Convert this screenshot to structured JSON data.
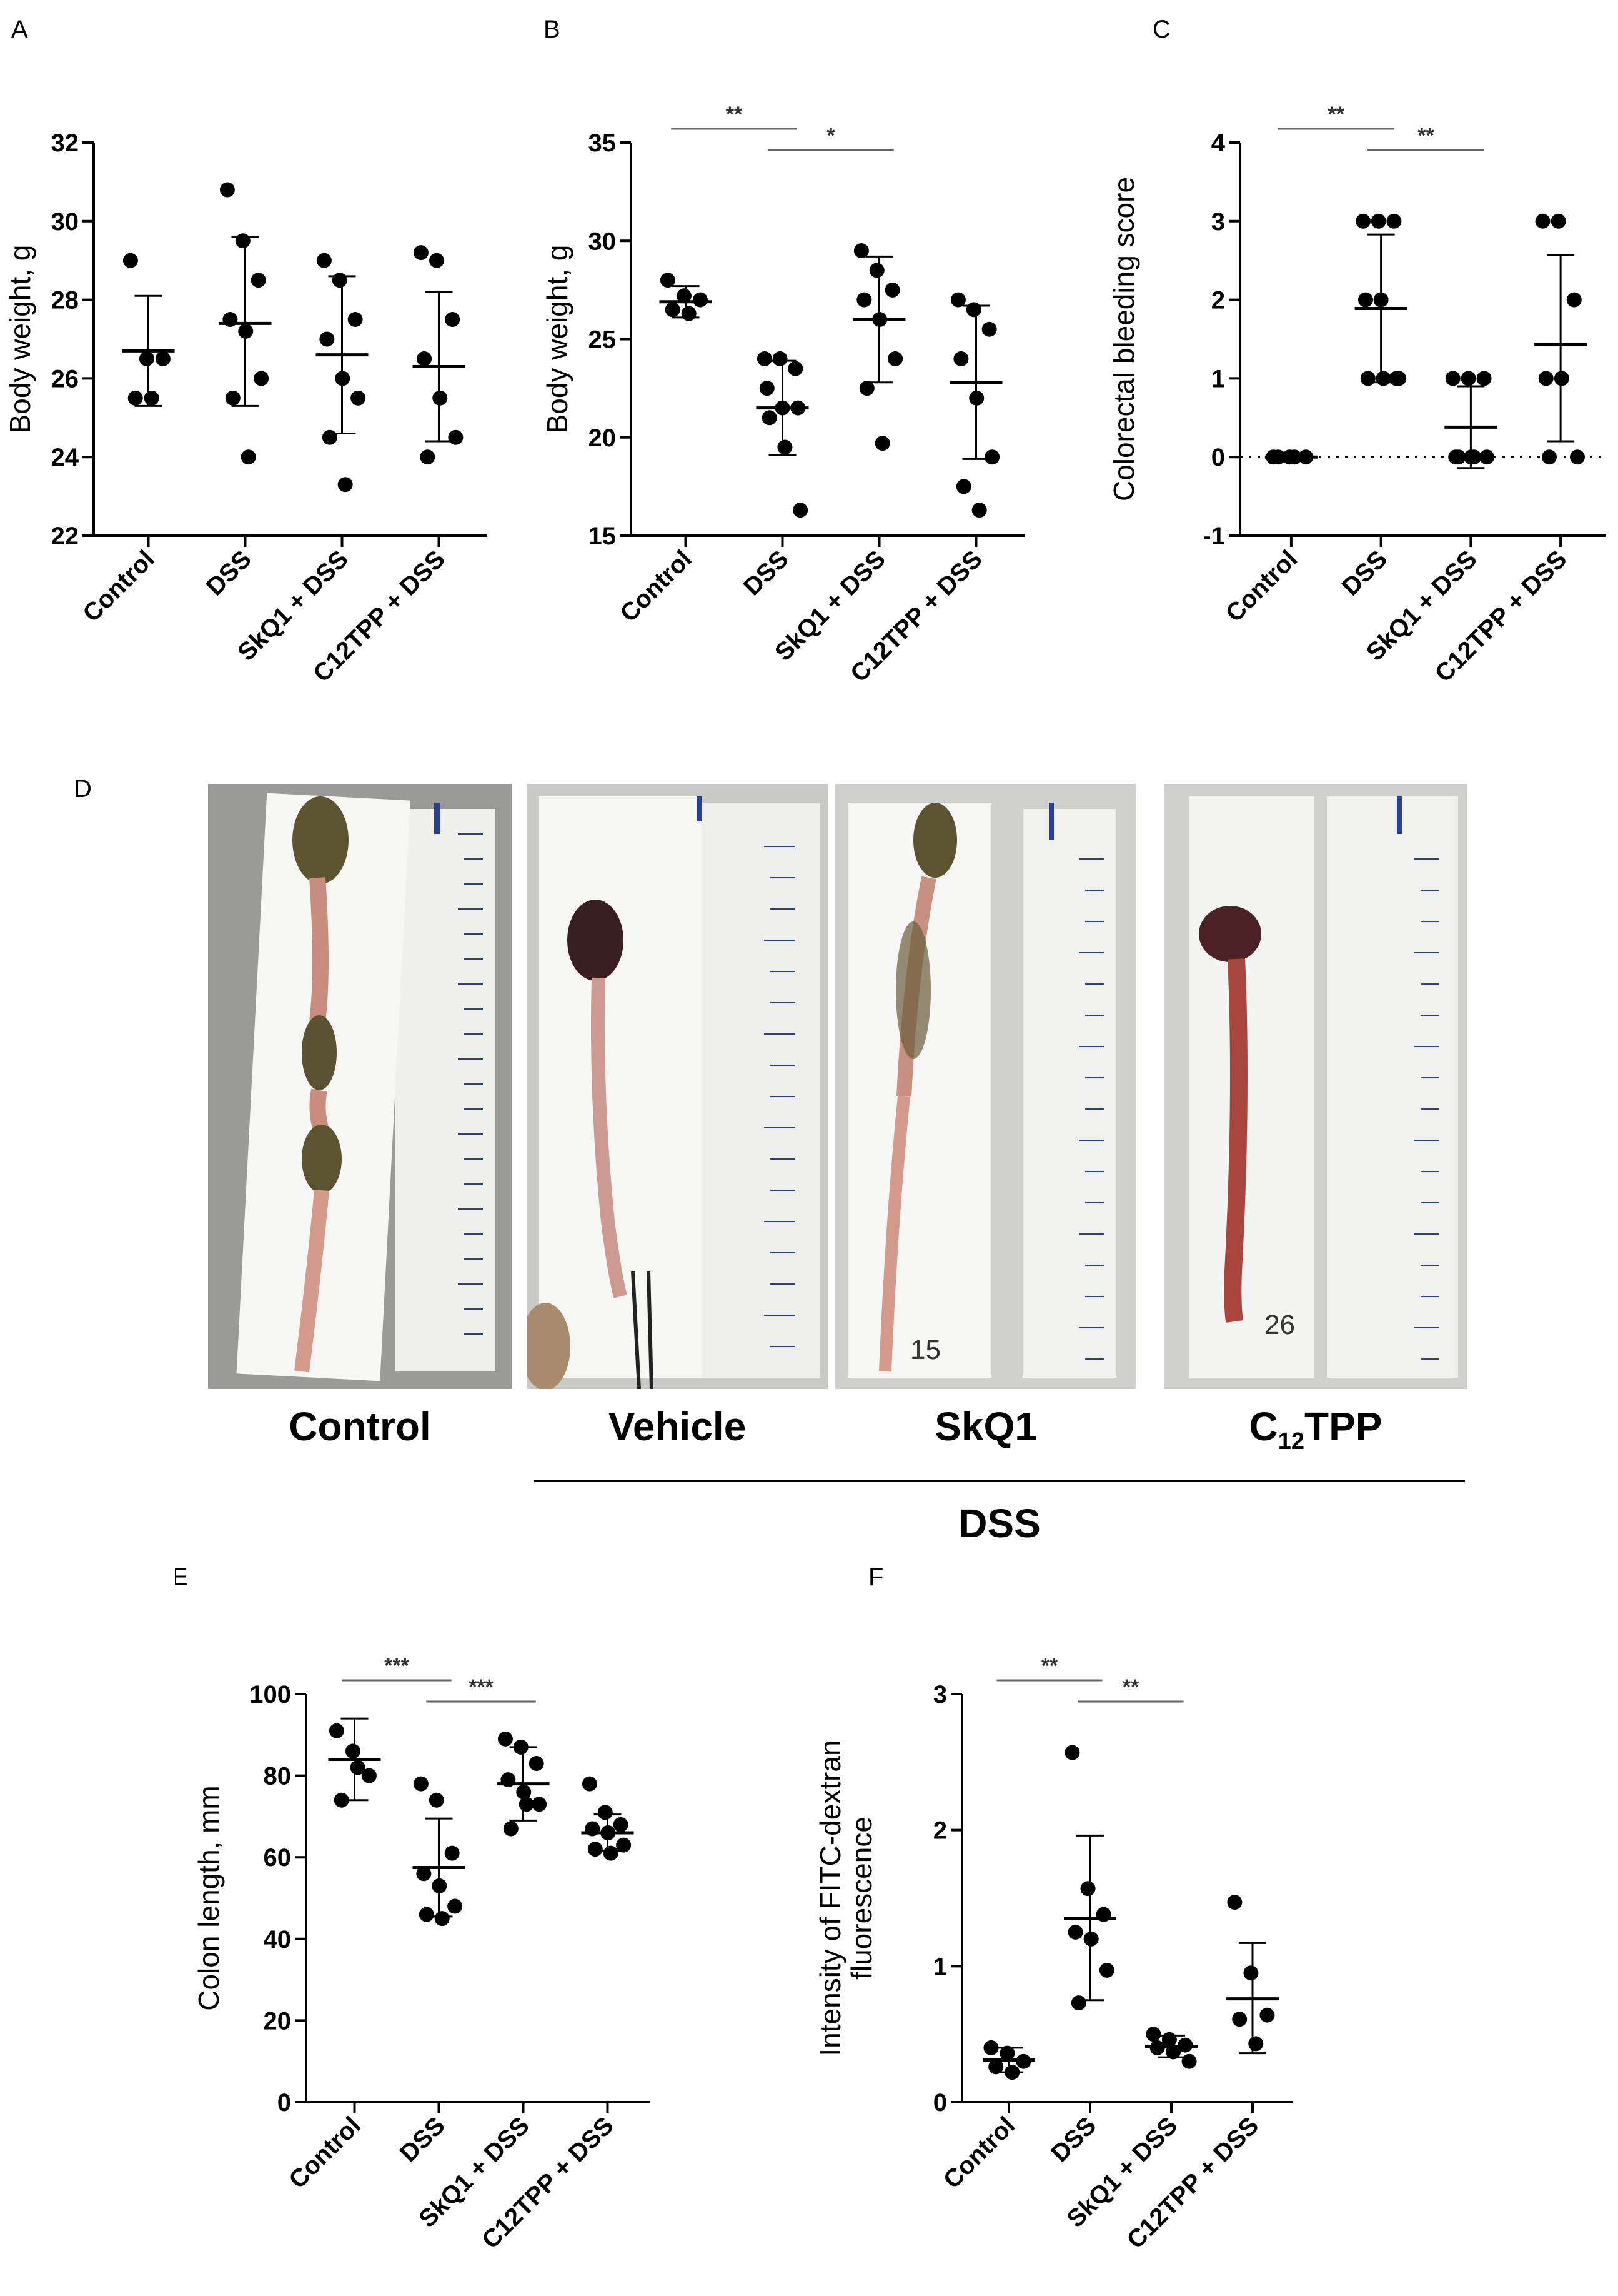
{
  "panel_labels": {
    "A": "A",
    "B": "B",
    "C": "C",
    "D": "D",
    "E": "E",
    "F": "F"
  },
  "photos": {
    "captions": [
      "Control",
      "Vehicle",
      "SkQ1",
      "C12TPP"
    ],
    "c12_prefix": "C",
    "c12_sub": "12",
    "c12_suffix": "TPP",
    "group_label": "DSS",
    "handwritten": [
      "15",
      "26"
    ]
  },
  "chart_data": [
    {
      "id": "A",
      "type": "scatter",
      "ylabel": "Body weight, g",
      "ylim": [
        22,
        32
      ],
      "yticks": [
        22,
        24,
        26,
        28,
        30,
        32
      ],
      "categories": [
        "Control",
        "DSS",
        "SkQ1 + DSS",
        "C12TPP + DSS"
      ],
      "points": [
        [
          29,
          26.5,
          26.5,
          25.5,
          25.5
        ],
        [
          30.8,
          29.5,
          28.5,
          27.5,
          27.2,
          26,
          25.5,
          24
        ],
        [
          29,
          28.5,
          27.5,
          27,
          26,
          25.5,
          24.5,
          23.3
        ],
        [
          29.2,
          29,
          27.5,
          26.5,
          25.5,
          24.5,
          24
        ]
      ],
      "means": [
        26.7,
        27.4,
        26.6,
        26.3
      ],
      "sd_low": [
        25.3,
        25.3,
        24.6,
        24.4
      ],
      "sd_high": [
        28.1,
        29.6,
        28.6,
        28.2
      ],
      "significance": [],
      "zero_line": false
    },
    {
      "id": "B",
      "type": "scatter",
      "ylabel": "Body weight, g",
      "ylim": [
        15,
        35
      ],
      "yticks": [
        15,
        20,
        25,
        30,
        35
      ],
      "categories": [
        "Control",
        "DSS",
        "SkQ1 + DSS",
        "C12TPP + DSS"
      ],
      "points": [
        [
          28,
          27.2,
          27,
          26.5,
          26.3
        ],
        [
          24,
          24,
          23.5,
          22.5,
          21.5,
          21.5,
          21,
          19.5,
          16.3
        ],
        [
          29.5,
          28.5,
          27.5,
          27,
          26,
          24,
          22.5,
          19.7
        ],
        [
          27,
          26.5,
          25.5,
          24,
          22,
          19,
          17.5,
          16.3
        ]
      ],
      "means": [
        26.9,
        21.5,
        26,
        22.8
      ],
      "sd_low": [
        26.1,
        19.1,
        22.8,
        18.9
      ],
      "sd_high": [
        27.7,
        23.9,
        29.2,
        26.7
      ],
      "significance": [
        {
          "from": 0,
          "to": 1,
          "label": "**"
        },
        {
          "from": 1,
          "to": 2,
          "label": "*"
        }
      ],
      "zero_line": false
    },
    {
      "id": "C",
      "type": "scatter",
      "ylabel": "Colorectal bleeding score",
      "ylim": [
        -1,
        4
      ],
      "yticks": [
        -1,
        0,
        1,
        2,
        3,
        4
      ],
      "categories": [
        "Control",
        "DSS",
        "SkQ1 + DSS",
        "C12TPP + DSS"
      ],
      "points": [
        [
          0,
          0,
          0,
          0,
          0
        ],
        [
          3,
          3,
          3,
          2,
          2,
          1,
          1,
          1,
          1
        ],
        [
          1,
          1,
          1,
          0,
          0,
          0,
          0,
          0
        ],
        [
          3,
          3,
          2,
          1,
          1,
          0,
          0
        ]
      ],
      "means": [
        0,
        1.89,
        0.38,
        1.43
      ],
      "sd_low": [
        0,
        0.95,
        -0.14,
        0.2
      ],
      "sd_high": [
        0,
        2.83,
        0.9,
        2.57
      ],
      "significance": [
        {
          "from": 0,
          "to": 1,
          "label": "**"
        },
        {
          "from": 1,
          "to": 2,
          "label": "**"
        }
      ],
      "zero_line": true
    },
    {
      "id": "E",
      "type": "scatter",
      "ylabel": "Colon length, mm",
      "ylim": [
        0,
        100
      ],
      "yticks": [
        0,
        20,
        40,
        60,
        80,
        100
      ],
      "categories": [
        "Control",
        "DSS",
        "SkQ1 + DSS",
        "C12TPP + DSS"
      ],
      "points": [
        [
          91,
          86,
          80,
          74,
          82
        ],
        [
          78,
          74,
          61,
          56,
          53,
          48,
          46,
          45
        ],
        [
          89,
          87,
          83,
          79,
          76,
          73,
          67,
          73
        ],
        [
          78,
          71,
          68,
          67,
          66,
          63,
          62,
          61
        ]
      ],
      "means": [
        84,
        57.5,
        78,
        66
      ],
      "sd_low": [
        74,
        45.5,
        69,
        61.5
      ],
      "sd_high": [
        94,
        69.5,
        87,
        70.5
      ],
      "significance": [
        {
          "from": 0,
          "to": 1,
          "label": "***"
        },
        {
          "from": 1,
          "to": 2,
          "label": "***"
        }
      ],
      "zero_line": false
    },
    {
      "id": "F",
      "type": "scatter",
      "ylabel": "Intensity of FITC-dextran fluorescence",
      "ylim": [
        0,
        3
      ],
      "yticks": [
        0,
        1,
        2,
        3
      ],
      "categories": [
        "Control",
        "DSS",
        "SkQ1 + DSS",
        "C12TPP + DSS"
      ],
      "points": [
        [
          0.4,
          0.36,
          0.3,
          0.26,
          0.22
        ],
        [
          2.57,
          1.57,
          1.38,
          1.25,
          1.2,
          0.97,
          0.73
        ],
        [
          0.5,
          0.46,
          0.42,
          0.4,
          0.37,
          0.3
        ],
        [
          1.47,
          0.95,
          0.64,
          0.61,
          0.43
        ]
      ],
      "means": [
        0.31,
        1.35,
        0.41,
        0.76
      ],
      "sd_low": [
        0.22,
        0.75,
        0.33,
        0.36
      ],
      "sd_high": [
        0.4,
        1.96,
        0.49,
        1.17
      ],
      "significance": [
        {
          "from": 0,
          "to": 1,
          "label": "**"
        },
        {
          "from": 1,
          "to": 2,
          "label": "**"
        }
      ],
      "zero_line": false
    }
  ]
}
